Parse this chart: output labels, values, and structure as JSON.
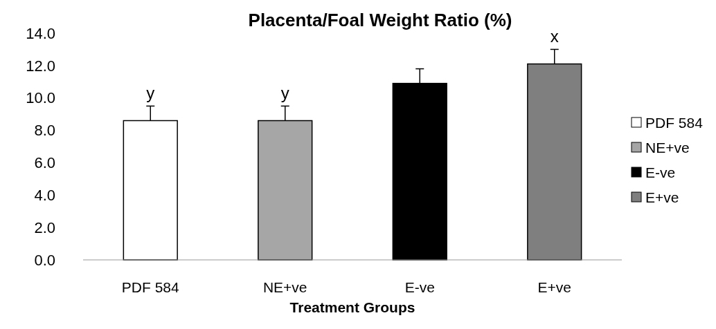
{
  "chart_data": {
    "type": "bar",
    "title": "Placenta/Foal Weight Ratio (%)",
    "xlabel": "Treatment Groups",
    "categories": [
      "PDF 584",
      "NE+ve",
      "E-ve",
      "E+ve"
    ],
    "series": [
      {
        "name": "PDF 584",
        "color": "#ffffff",
        "values": [
          8.6,
          null,
          null,
          null
        ],
        "errors": [
          0.9,
          null,
          null,
          null
        ]
      },
      {
        "name": "NE+ve",
        "color": "#a6a6a6",
        "values": [
          null,
          8.6,
          null,
          null
        ],
        "errors": [
          null,
          0.9,
          null,
          null
        ]
      },
      {
        "name": "E-ve",
        "color": "#000000",
        "values": [
          null,
          null,
          10.9,
          null
        ],
        "errors": [
          null,
          null,
          0.9,
          null
        ]
      },
      {
        "name": "E+ve",
        "color": "#7f7f7f",
        "values": [
          null,
          null,
          null,
          12.1
        ],
        "errors": [
          null,
          null,
          null,
          0.9
        ]
      }
    ],
    "ylim": [
      0,
      14
    ],
    "yticks": [
      {
        "value": 0,
        "label": "0.0"
      },
      {
        "value": 2,
        "label": "2.0"
      },
      {
        "value": 4,
        "label": "4.0"
      },
      {
        "value": 6,
        "label": "6.0"
      },
      {
        "value": 8,
        "label": "8.0"
      },
      {
        "value": 10,
        "label": "10.0"
      },
      {
        "value": 12,
        "label": "12.0"
      },
      {
        "value": 14,
        "label": "14.0"
      }
    ],
    "annotations": [
      {
        "text": "y",
        "x": "PDF 584",
        "y": 9.5
      },
      {
        "text": "y",
        "x": "NE+ve",
        "y": 9.5
      },
      {
        "text": "x",
        "x": "E+ve",
        "y": 13.0
      }
    ],
    "legend": "right"
  }
}
